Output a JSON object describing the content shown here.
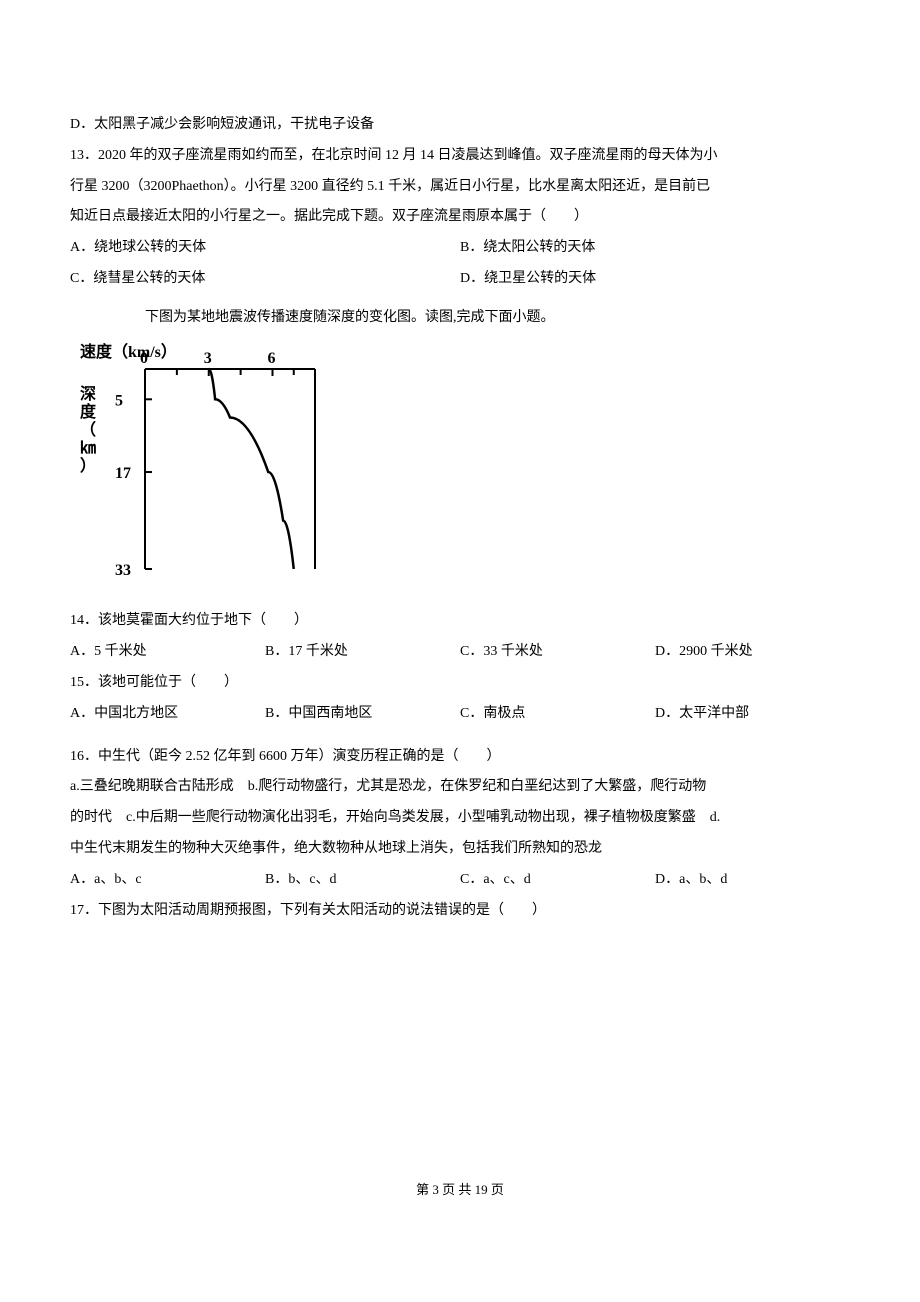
{
  "page": {
    "footer": "第 3 页 共 19 页"
  },
  "q12_opt_d": "D．太阳黑子减少会影响短波通讯，干扰电子设备",
  "q13": {
    "line1": "13．2020 年的双子座流星雨如约而至，在北京时间 12 月 14 日凌晨达到峰值。双子座流星雨的母天体为小",
    "line2": "行星 3200（3200Phaethon）。小行星 3200 直径约 5.1 千米，属近日小行星，比水星离太阳还近，是目前已",
    "line3": "知近日点最接近太阳的小行星之一。据此完成下题。双子座流星雨原本属于（　　）",
    "opt_a": "A．绕地球公转的天体",
    "opt_b": "B．绕太阳公转的天体",
    "opt_c": "C．绕彗星公转的天体",
    "opt_d": "D．绕卫星公转的天体"
  },
  "chart_caption": "下图为某地地震波传播速度随深度的变化图。读图,完成下面小题。",
  "chart": {
    "type": "line",
    "title_top": "速度（km/s）",
    "label_left": "深度（㎞）",
    "x_ticks": [
      0,
      3,
      6
    ],
    "y_ticks": [
      5,
      17,
      33
    ],
    "x_range": [
      0,
      8
    ],
    "y_range": [
      0,
      33
    ],
    "line_points": [
      {
        "depth": 0,
        "speed": 3.0
      },
      {
        "depth": 5,
        "speed": 3.3
      },
      {
        "depth": 8,
        "speed": 4.0
      },
      {
        "depth": 17,
        "speed": 5.8
      },
      {
        "depth": 25,
        "speed": 6.5
      },
      {
        "depth": 33,
        "speed": 7.0
      }
    ],
    "line_color": "#000000",
    "line_width": 2.5,
    "axis_color": "#000000",
    "axis_width": 2,
    "background_color": "#ffffff",
    "font_weight": "bold",
    "font_size_title": 16,
    "font_size_ticks": 16
  },
  "q14": {
    "text": "14．该地莫霍面大约位于地下（　　）",
    "opt_a": "A．5 千米处",
    "opt_b": "B．17 千米处",
    "opt_c": "C．33 千米处",
    "opt_d": "D．2900 千米处"
  },
  "q15": {
    "text": "15．该地可能位于（　　）",
    "opt_a": "A．中国北方地区",
    "opt_b": "B．中国西南地区",
    "opt_c": "C．南极点",
    "opt_d": "D．太平洋中部"
  },
  "q16": {
    "line1": "16．中生代（距今 2.52 亿年到 6600 万年）演变历程正确的是（　　）",
    "line2": "a.三叠纪晚期联合古陆形成　b.爬行动物盛行，尤其是恐龙，在侏罗纪和白垩纪达到了大繁盛，爬行动物",
    "line3": "的时代　c.中后期一些爬行动物演化出羽毛，开始向鸟类发展，小型哺乳动物出现，裸子植物极度繁盛　d.",
    "line4": "中生代末期发生的物种大灭绝事件，绝大数物种从地球上消失，包括我们所熟知的恐龙",
    "opt_a": "A．a、b、c",
    "opt_b": "B．b、c、d",
    "opt_c": "C．a、c、d",
    "opt_d": "D．a、b、d"
  },
  "q17": {
    "text": "17．下图为太阳活动周期预报图，下列有关太阳活动的说法错误的是（　　）"
  }
}
